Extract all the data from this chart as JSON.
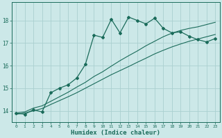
{
  "title": "",
  "xlabel": "Humidex (Indice chaleur)",
  "ylabel": "",
  "bg_color": "#cce8e8",
  "grid_color": "#aad0d0",
  "line_color": "#1a6b5a",
  "x_ticks": [
    0,
    1,
    2,
    3,
    4,
    5,
    6,
    7,
    8,
    9,
    10,
    11,
    12,
    13,
    14,
    15,
    16,
    17,
    18,
    19,
    20,
    21,
    22,
    23
  ],
  "y_ticks": [
    14,
    15,
    16,
    17,
    18
  ],
  "ylim": [
    13.5,
    18.8
  ],
  "xlim": [
    -0.5,
    23.5
  ],
  "main_line": [
    13.9,
    13.85,
    14.05,
    13.95,
    14.8,
    15.0,
    15.15,
    15.45,
    16.05,
    17.35,
    17.25,
    18.05,
    17.45,
    18.15,
    18.0,
    17.85,
    18.1,
    17.65,
    17.45,
    17.5,
    17.3,
    17.15,
    17.05,
    17.2
  ],
  "lower_line": [
    13.85,
    13.9,
    14.0,
    14.1,
    14.28,
    14.45,
    14.62,
    14.8,
    15.0,
    15.2,
    15.4,
    15.6,
    15.78,
    15.96,
    16.15,
    16.33,
    16.52,
    16.68,
    16.83,
    16.96,
    17.08,
    17.18,
    17.28,
    17.38
  ],
  "upper_line": [
    13.9,
    13.95,
    14.12,
    14.22,
    14.42,
    14.62,
    14.82,
    15.05,
    15.26,
    15.52,
    15.73,
    15.98,
    16.22,
    16.44,
    16.65,
    16.88,
    17.08,
    17.28,
    17.44,
    17.56,
    17.65,
    17.72,
    17.82,
    17.92
  ]
}
